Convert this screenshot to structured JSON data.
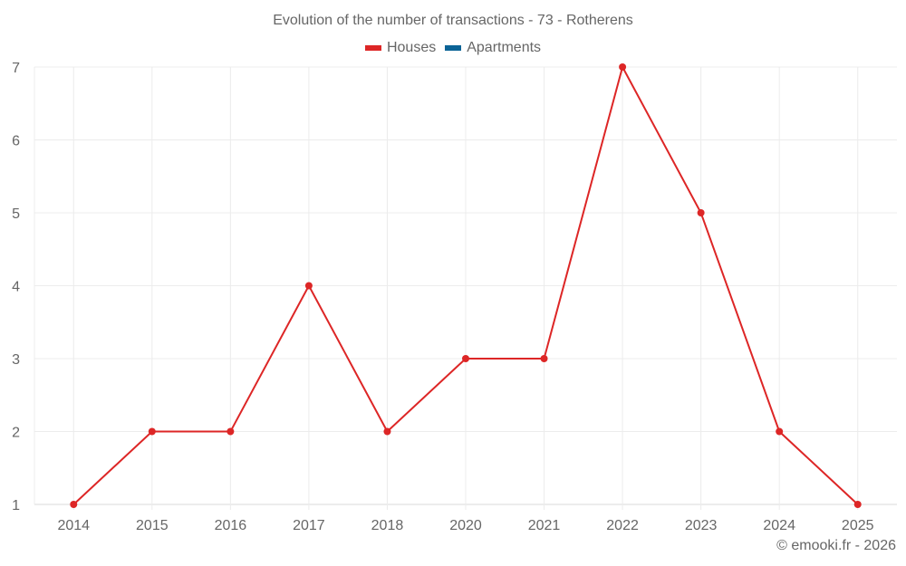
{
  "title": "Evolution of the number of transactions - 73 - Rotherens",
  "legend": [
    {
      "label": "Houses",
      "color": "#dd2626"
    },
    {
      "label": "Apartments",
      "color": "#0b6396"
    }
  ],
  "credit": "© emooki.fr - 2026",
  "chart_data": {
    "type": "line",
    "title": "Evolution of the number of transactions - 73 - Rotherens",
    "xlabel": "",
    "ylabel": "",
    "categories": [
      "2014",
      "2015",
      "2016",
      "2017",
      "2018",
      "2020",
      "2021",
      "2022",
      "2023",
      "2024",
      "2025"
    ],
    "series": [
      {
        "name": "Houses",
        "color": "#dd2626",
        "values": [
          1,
          2,
          2,
          4,
          2,
          3,
          3,
          7,
          5,
          2,
          1
        ]
      },
      {
        "name": "Apartments",
        "color": "#0b6396",
        "values": []
      }
    ],
    "ylim": [
      1,
      7
    ],
    "yticks": [
      1,
      2,
      3,
      4,
      5,
      6,
      7
    ],
    "grid": true,
    "legend_position": "top"
  }
}
